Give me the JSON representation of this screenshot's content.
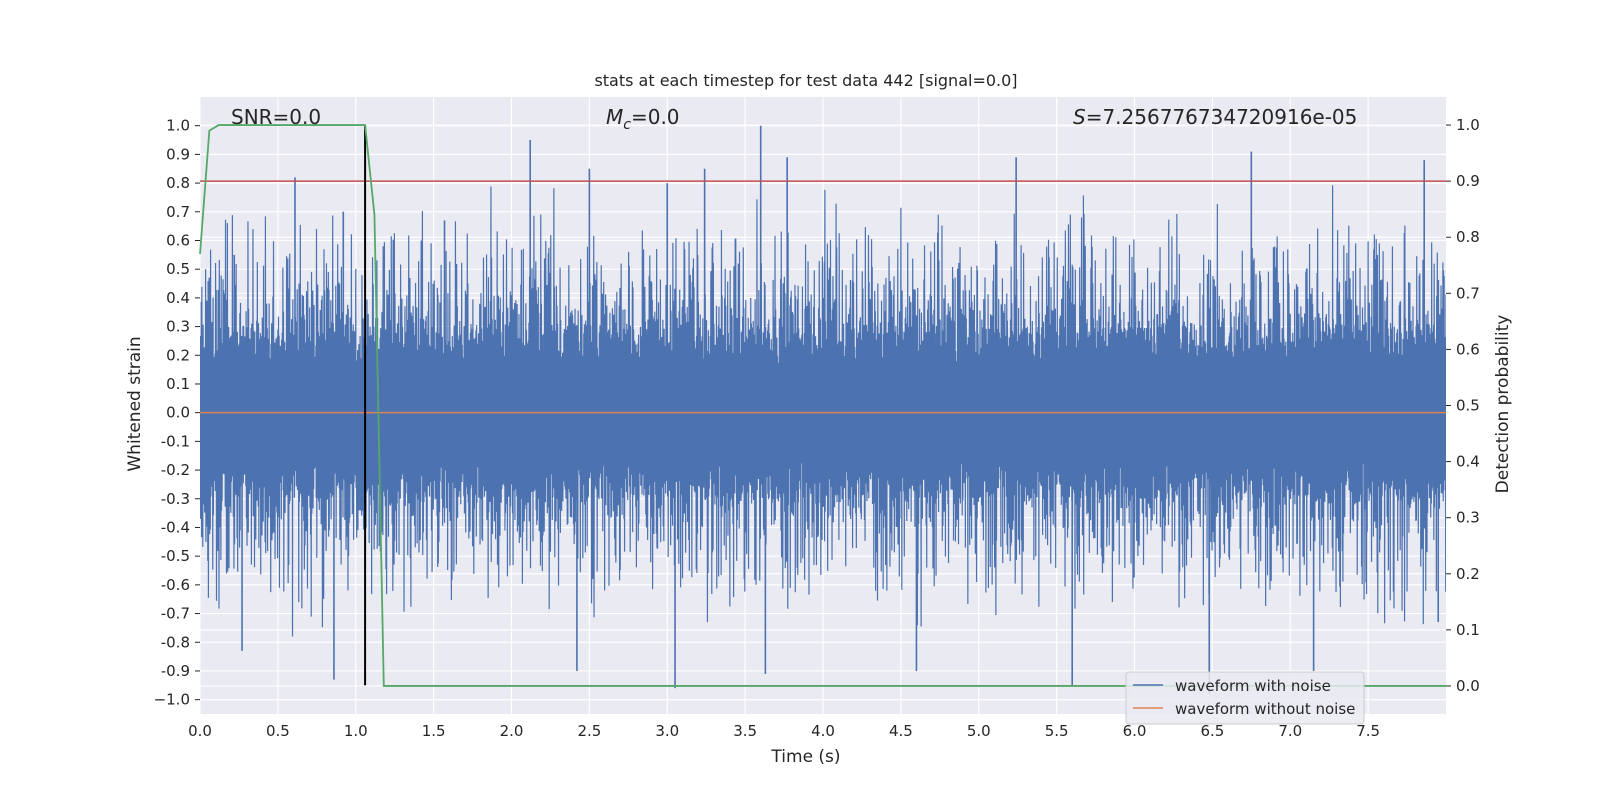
{
  "chart_data": {
    "type": "line",
    "title": "stats at each timestep for test data 442 [signal=0.0]",
    "xlabel": "Time (s)",
    "ylabel": "Whitened strain",
    "y2label": "Detection probability",
    "xlim": [
      0.0,
      8.0
    ],
    "ylim": [
      -1.05,
      1.1
    ],
    "y2lim": [
      -0.05,
      1.05
    ],
    "xticks": [
      "0.0",
      "0.5",
      "1.0",
      "1.5",
      "2.0",
      "2.5",
      "3.0",
      "3.5",
      "4.0",
      "4.5",
      "5.0",
      "5.5",
      "6.0",
      "6.5",
      "7.0",
      "7.5"
    ],
    "yticks": [
      "1.0",
      "0.9",
      "0.8",
      "0.7",
      "0.6",
      "0.5",
      "0.4",
      "0.3",
      "0.2",
      "0.1",
      "0.0",
      "-0.1",
      "-0.2",
      "-0.3",
      "-0.4",
      "-0.5",
      "-0.6",
      "-0.7",
      "-0.8",
      "-0.9",
      "−1.0"
    ],
    "y2ticks": [
      "1.0",
      "0.9",
      "0.8",
      "0.7",
      "0.6",
      "0.5",
      "0.4",
      "0.3",
      "0.2",
      "0.1",
      "0.0"
    ],
    "grid": true,
    "legend_position": "lower-right",
    "annotations": {
      "snr": "SNR=0.0",
      "mc_symbol": "M",
      "mc_sub": "c",
      "mc_value": "=0.0",
      "s_symbol": "S",
      "s_value": "=7.256776734720916e-05"
    },
    "series": [
      {
        "name": "waveform with noise",
        "color": "#4c72b0",
        "style": "dense noise, amplitude mostly within ±0.45, peaks up to ±1.0",
        "peaks": [
          {
            "x": 0.06,
            "y": 0.47
          },
          {
            "x": 0.22,
            "y": 0.55
          },
          {
            "x": 0.61,
            "y": 0.82
          },
          {
            "x": 0.92,
            "y": 0.7
          },
          {
            "x": 1.57,
            "y": 0.67
          },
          {
            "x": 2.12,
            "y": 0.95
          },
          {
            "x": 2.5,
            "y": 0.85
          },
          {
            "x": 3.0,
            "y": 0.8
          },
          {
            "x": 3.24,
            "y": 0.85
          },
          {
            "x": 3.6,
            "y": 1.0
          },
          {
            "x": 3.77,
            "y": 0.89
          },
          {
            "x": 5.24,
            "y": 0.89
          },
          {
            "x": 6.75,
            "y": 0.91
          },
          {
            "x": 7.86,
            "y": 0.88
          },
          {
            "x": 0.27,
            "y": -0.83
          },
          {
            "x": 0.86,
            "y": -0.93
          },
          {
            "x": 2.42,
            "y": -0.9
          },
          {
            "x": 3.05,
            "y": -0.96
          },
          {
            "x": 3.63,
            "y": -0.91
          },
          {
            "x": 4.6,
            "y": -0.9
          },
          {
            "x": 5.6,
            "y": -0.95
          },
          {
            "x": 6.48,
            "y": -0.98
          },
          {
            "x": 7.15,
            "y": -0.9
          },
          {
            "x": 7.95,
            "y": -0.73
          }
        ]
      },
      {
        "name": "waveform without noise",
        "color": "#dd8452",
        "x": [
          0.0,
          8.0
        ],
        "y": [
          0.0,
          0.0
        ]
      },
      {
        "name": "detection probability",
        "axis": "right",
        "color": "#55a868",
        "x": [
          0.0,
          0.06,
          0.12,
          0.25,
          0.5,
          0.75,
          1.0,
          1.06,
          1.12,
          1.18,
          8.0
        ],
        "y": [
          0.77,
          0.99,
          1.0,
          1.0,
          1.0,
          1.0,
          1.0,
          1.0,
          0.84,
          0.0,
          0.0
        ]
      }
    ],
    "reference_lines": [
      {
        "axis": "right",
        "orientation": "horizontal",
        "value": 0.9,
        "color": "#c44e52"
      },
      {
        "axis": "left",
        "orientation": "vertical",
        "x": 1.06,
        "y_from": -0.95,
        "y_to": 1.0,
        "color": "#000000"
      }
    ]
  }
}
